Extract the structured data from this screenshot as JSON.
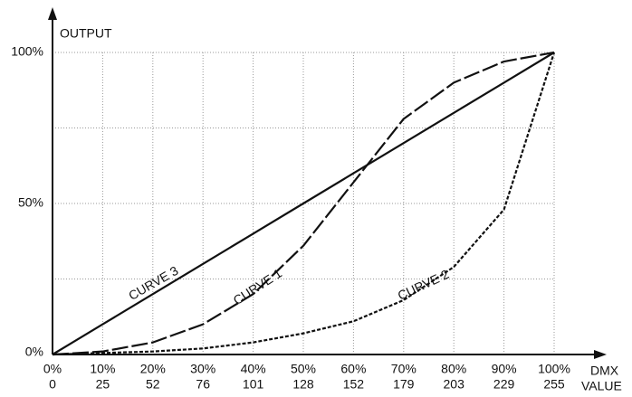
{
  "chart_data": {
    "type": "line",
    "y_label": "OUTPUT",
    "x_label_lines": [
      "DMX",
      "VALUE"
    ],
    "xlim": [
      0,
      100
    ],
    "ylim": [
      0,
      100
    ],
    "xticks": [
      {
        "value": 0,
        "label": "0%"
      },
      {
        "value": 10,
        "label": "10%"
      },
      {
        "value": 20,
        "label": "20%"
      },
      {
        "value": 30,
        "label": "30%"
      },
      {
        "value": 40,
        "label": "40%"
      },
      {
        "value": 50,
        "label": "50%"
      },
      {
        "value": 60,
        "label": "60%"
      },
      {
        "value": 70,
        "label": "70%"
      },
      {
        "value": 80,
        "label": "80%"
      },
      {
        "value": 90,
        "label": "90%"
      },
      {
        "value": 100,
        "label": "100%"
      }
    ],
    "dmx_values": [
      0,
      25,
      52,
      76,
      101,
      128,
      152,
      179,
      203,
      229,
      255
    ],
    "yticks": [
      {
        "value": 0,
        "label": "0%"
      },
      {
        "value": 50,
        "label": "50%"
      },
      {
        "value": 100,
        "label": "100%"
      }
    ],
    "ygrid": [
      25,
      75
    ],
    "grid": true,
    "x": [
      0,
      10,
      20,
      30,
      40,
      50,
      60,
      70,
      80,
      90,
      100
    ],
    "series": [
      {
        "name": "CURVE 1",
        "color": "#111111",
        "dash": "18 4",
        "values": [
          0,
          1,
          4,
          10,
          20,
          36,
          57,
          78,
          90,
          97,
          100
        ]
      },
      {
        "name": "CURVE 2",
        "color": "#111111",
        "dash": "4 2",
        "values": [
          0,
          0.5,
          1,
          2,
          4,
          7,
          11,
          18,
          29,
          48,
          100
        ]
      },
      {
        "name": "CURVE 3",
        "color": "#111111",
        "dash": "none",
        "values": [
          0,
          10,
          20,
          30,
          40,
          50,
          60,
          70,
          80,
          90,
          100
        ]
      }
    ]
  }
}
